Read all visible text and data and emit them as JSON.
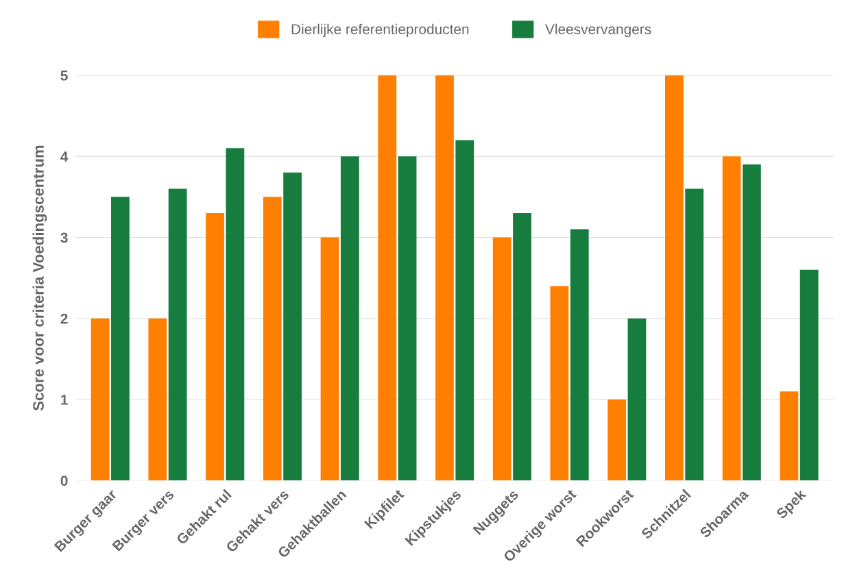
{
  "chart_data": {
    "type": "bar",
    "ylabel": "Score voor criteria Voedingscentrum",
    "categories": [
      "Burger gaar",
      "Burger vers",
      "Gehakt rul",
      "Gehakt vers",
      "Gehaktballen",
      "Kipfilet",
      "Kipstukjes",
      "Nuggets",
      "Overige worst",
      "Rookworst",
      "Schnitzel",
      "Shoarma",
      "Spek"
    ],
    "series": [
      {
        "name": "Dierlijke referentieproducten",
        "color": "#ff8000",
        "values": [
          2,
          2,
          3.3,
          3.5,
          3,
          5,
          5,
          3,
          2.4,
          1,
          5,
          4,
          1.1
        ]
      },
      {
        "name": "Vleesvervangers",
        "color": "#167d3f",
        "values": [
          3.5,
          3.6,
          4.1,
          3.8,
          4,
          4,
          4.2,
          3.3,
          3.1,
          2,
          3.6,
          3.9,
          2.6
        ]
      }
    ],
    "ylim": [
      0,
      5
    ],
    "yticks": [
      0,
      1,
      2,
      3,
      4,
      5
    ],
    "grid": "y",
    "legend": "top"
  }
}
